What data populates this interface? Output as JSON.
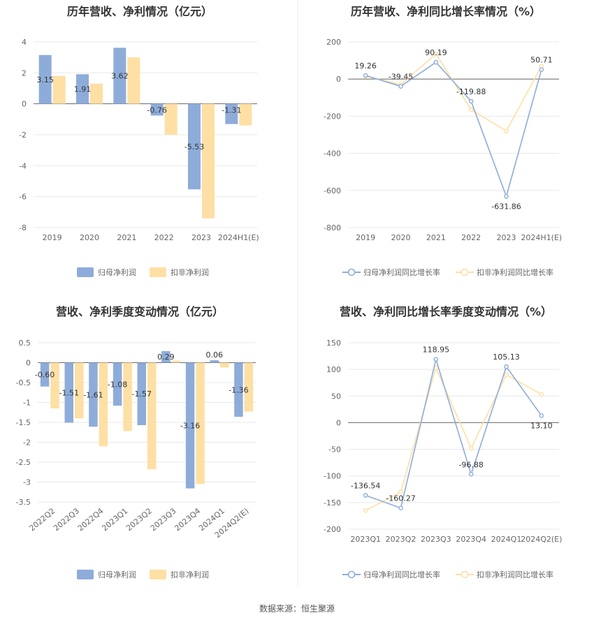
{
  "source_text": "数据来源：恒生聚源",
  "colors": {
    "primary": "#8eacd9",
    "secondary": "#fedfa4",
    "grid": "#e8e8e8",
    "axis": "#999999",
    "divider": "#eeeeee"
  },
  "chart_data": [
    {
      "type": "bar",
      "title": "历年营收、净利情况（亿元）",
      "categories": [
        "2019",
        "2020",
        "2021",
        "2022",
        "2023",
        "2024H1(E)"
      ],
      "ylim": [
        -8,
        4
      ],
      "yticks": [
        "4",
        "2",
        "0",
        "-2",
        "-4",
        "-6",
        "-8"
      ],
      "ytick_values": [
        4,
        2,
        0,
        -2,
        -4,
        -6,
        -8
      ],
      "series": [
        {
          "name": "归母净利润",
          "values": [
            3.15,
            1.91,
            3.62,
            -0.76,
            -5.53,
            -1.31
          ],
          "labels": [
            "3.15",
            "1.91",
            "3.62",
            "-0.76",
            "-5.53",
            "-1.31"
          ]
        },
        {
          "name": "扣非净利润",
          "values": [
            1.8,
            1.3,
            3.0,
            -2.0,
            -7.4,
            -1.4
          ]
        }
      ],
      "legend": "bottom",
      "grid": true
    },
    {
      "type": "line",
      "title": "历年营收、净利同比增长率情况（%）",
      "categories": [
        "2019",
        "2020",
        "2021",
        "2022",
        "2023",
        "2024H1(E)"
      ],
      "ylim": [
        -800,
        200
      ],
      "yticks": [
        "200",
        "0",
        "-200",
        "-400",
        "-600",
        "-800"
      ],
      "ytick_values": [
        200,
        0,
        -200,
        -400,
        -600,
        -800
      ],
      "series": [
        {
          "name": "归母净利润同比增长率",
          "values": [
            19.26,
            -39.45,
            90.19,
            -119.88,
            -631.86,
            50.71
          ],
          "labels": [
            "19.26",
            "-39.45",
            "90.19",
            "-119.88",
            "-631.86",
            "50.71"
          ]
        },
        {
          "name": "扣非净利润同比增长率",
          "values": [
            15,
            -30,
            135,
            -165,
            -280,
            70
          ]
        }
      ],
      "legend": "bottom",
      "grid": true
    },
    {
      "type": "bar",
      "title": "营收、净利季度变动情况（亿元）",
      "categories": [
        "2022Q2",
        "2022Q3",
        "2022Q4",
        "2023Q1",
        "2023Q2",
        "2023Q3",
        "2023Q4",
        "2024Q1",
        "2024Q2(E)"
      ],
      "ylim": [
        -3.5,
        0.5
      ],
      "yticks": [
        "0.5",
        "0",
        "-0.5",
        "-1",
        "-1.5",
        "-2",
        "-2.5",
        "-3",
        "-3.5"
      ],
      "ytick_values": [
        0.5,
        0,
        -0.5,
        -1,
        -1.5,
        -2,
        -2.5,
        -3,
        -3.5
      ],
      "series": [
        {
          "name": "归母净利润",
          "values": [
            -0.6,
            -1.51,
            -1.61,
            -1.08,
            -1.57,
            0.29,
            -3.16,
            0.06,
            -1.36
          ],
          "labels": [
            "-0.60",
            "-1.51",
            "-1.61",
            "-1.08",
            "-1.57",
            "0.29",
            "-3.16",
            "0.06",
            "-1.36"
          ]
        },
        {
          "name": "扣非净利润",
          "values": [
            -1.15,
            -1.4,
            -2.1,
            -1.72,
            -2.68,
            0.05,
            -3.05,
            -0.12,
            -1.23
          ]
        }
      ],
      "legend": "bottom",
      "grid": true
    },
    {
      "type": "line",
      "title": "营收、净利同比增长率季度变动情况（%）",
      "categories": [
        "2023Q1",
        "2023Q2",
        "2023Q3",
        "2023Q4",
        "2024Q1",
        "2024Q2(E)"
      ],
      "ylim": [
        -200,
        150
      ],
      "yticks": [
        "150",
        "100",
        "50",
        "0",
        "-50",
        "-100",
        "-150",
        "-200"
      ],
      "ytick_values": [
        150,
        100,
        50,
        0,
        -50,
        -100,
        -150,
        -200
      ],
      "series": [
        {
          "name": "归母净利润同比增长率",
          "values": [
            -136.54,
            -160.27,
            118.95,
            -96.88,
            105.13,
            13.1
          ],
          "labels": [
            "-136.54",
            "-160.27",
            "118.95",
            "-96.88",
            "105.13",
            "13.10"
          ]
        },
        {
          "name": "扣非净利润同比增长率",
          "values": [
            -165,
            -130,
            103,
            -48,
            90,
            53
          ]
        }
      ],
      "legend": "bottom",
      "grid": true
    }
  ]
}
